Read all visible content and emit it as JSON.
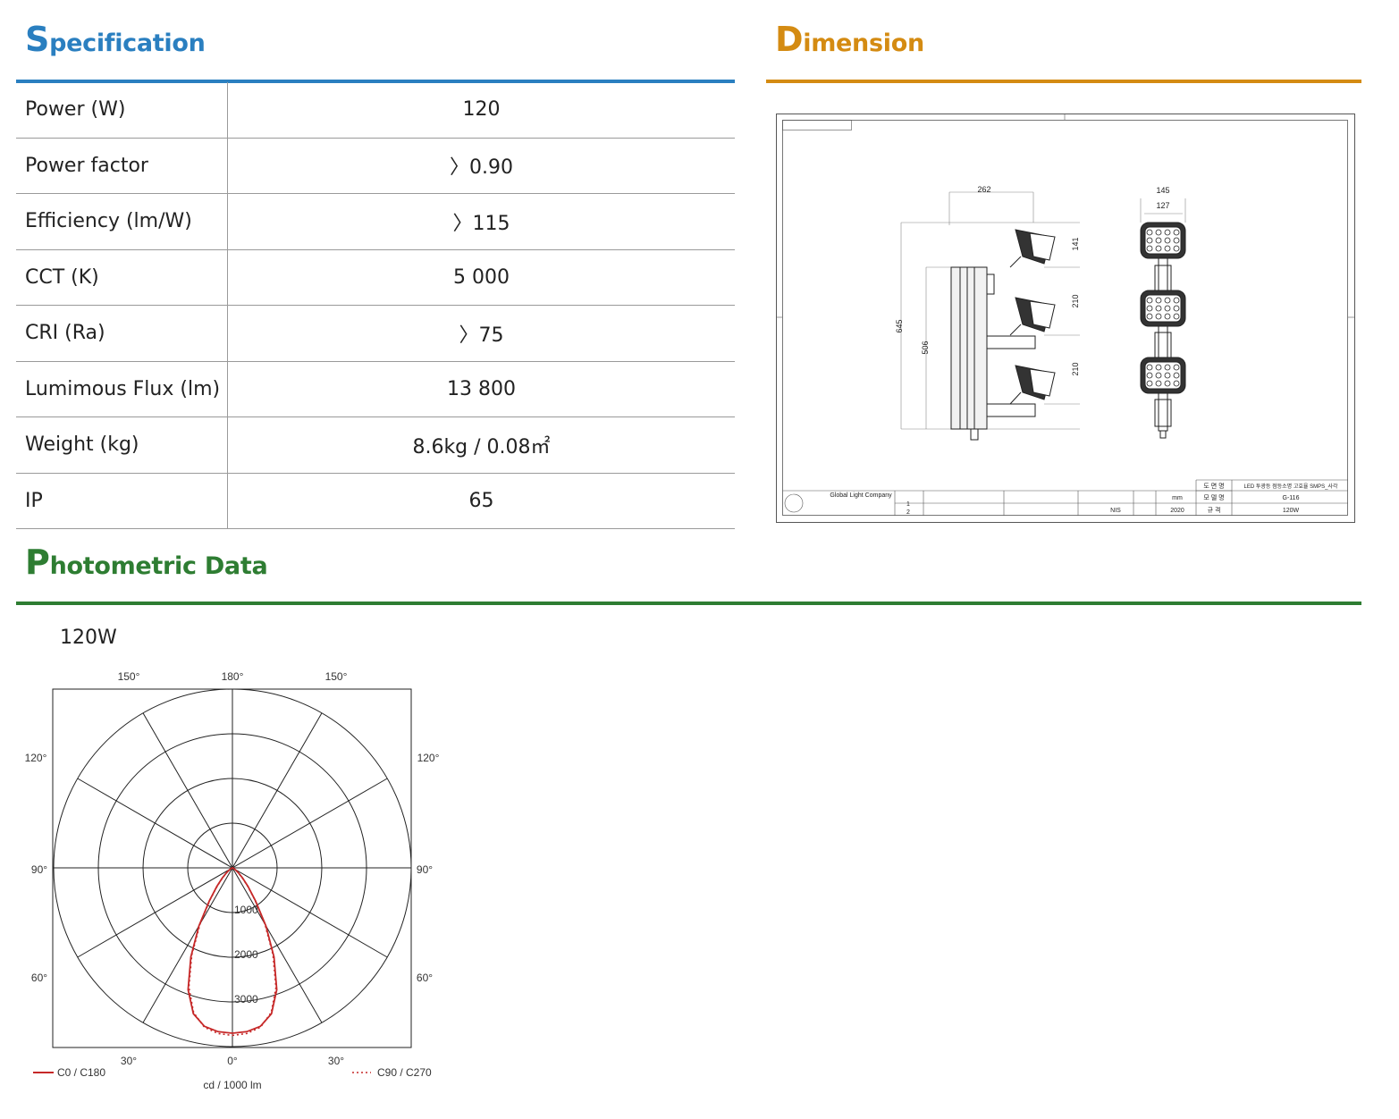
{
  "specification": {
    "title_cap": "S",
    "title_rest": "pecification",
    "color": "#2a7fc0",
    "rows": [
      {
        "label": "Power (W)",
        "value": "120"
      },
      {
        "label": "Power factor",
        "value": "〉0.90"
      },
      {
        "label": "Efficiency (lm/W)",
        "value": "〉115"
      },
      {
        "label": "CCT (K)",
        "value": "5 000"
      },
      {
        "label": "CRI (Ra)",
        "value": "〉75"
      },
      {
        "label": "Lumimous Flux (lm)",
        "value": "13 800"
      },
      {
        "label": "Weight (kg)",
        "value": "8.6kg / 0.08㎡"
      },
      {
        "label": "IP",
        "value": "65"
      }
    ]
  },
  "dimension": {
    "title_cap": "D",
    "title_rest": "imension",
    "color": "#d48b12",
    "drawing": {
      "dims": {
        "w262": "262",
        "h645": "645",
        "h506": "506",
        "h141": "141",
        "h210a": "210",
        "h210b": "210",
        "w145": "145",
        "w127": "127"
      },
      "company": "Global Light Company",
      "unit": "mm",
      "scale": "NIS",
      "year": "2020",
      "title_label": "도 면 명",
      "title_value": "LED 투광등 점등소명 고효율 SMPS_사각",
      "model_label": "모 델 명",
      "model_value": "G-116",
      "spec_label": "규 격",
      "spec_value": "120W",
      "rev1": "1",
      "rev2": "2"
    }
  },
  "photometric": {
    "title_cap": "P",
    "title_rest": "hotometric Data",
    "color": "#2e7d32",
    "subtitle": "120W"
  },
  "chart_data": {
    "type": "polar",
    "unit_label": "cd / 1000 lm",
    "radial_ticks": [
      1000,
      2000,
      3000
    ],
    "rmax": 4000,
    "angle_labels_top": [
      "150°",
      "180°",
      "150°"
    ],
    "angle_labels_side": [
      "120°",
      "90°",
      "60°"
    ],
    "angle_labels_bottom": [
      "30°",
      "0°",
      "30°"
    ],
    "series": [
      {
        "name": "C0 / C180",
        "color": "#c62828",
        "dash": "",
        "angles": [
          0,
          5,
          10,
          15,
          20,
          25,
          30,
          35,
          40,
          45,
          50,
          55,
          60,
          70,
          80
        ],
        "values": [
          3700,
          3680,
          3600,
          3380,
          2900,
          2200,
          1500,
          900,
          540,
          320,
          180,
          100,
          50,
          15,
          0
        ]
      },
      {
        "name": "C90 / C270",
        "color": "#c62828",
        "dash": "2,3",
        "angles": [
          0,
          5,
          10,
          15,
          20,
          25,
          30,
          35,
          40,
          45,
          50,
          55,
          60,
          70,
          80
        ],
        "values": [
          3750,
          3720,
          3620,
          3350,
          2850,
          2150,
          1450,
          870,
          520,
          300,
          170,
          95,
          45,
          12,
          0
        ]
      }
    ]
  }
}
